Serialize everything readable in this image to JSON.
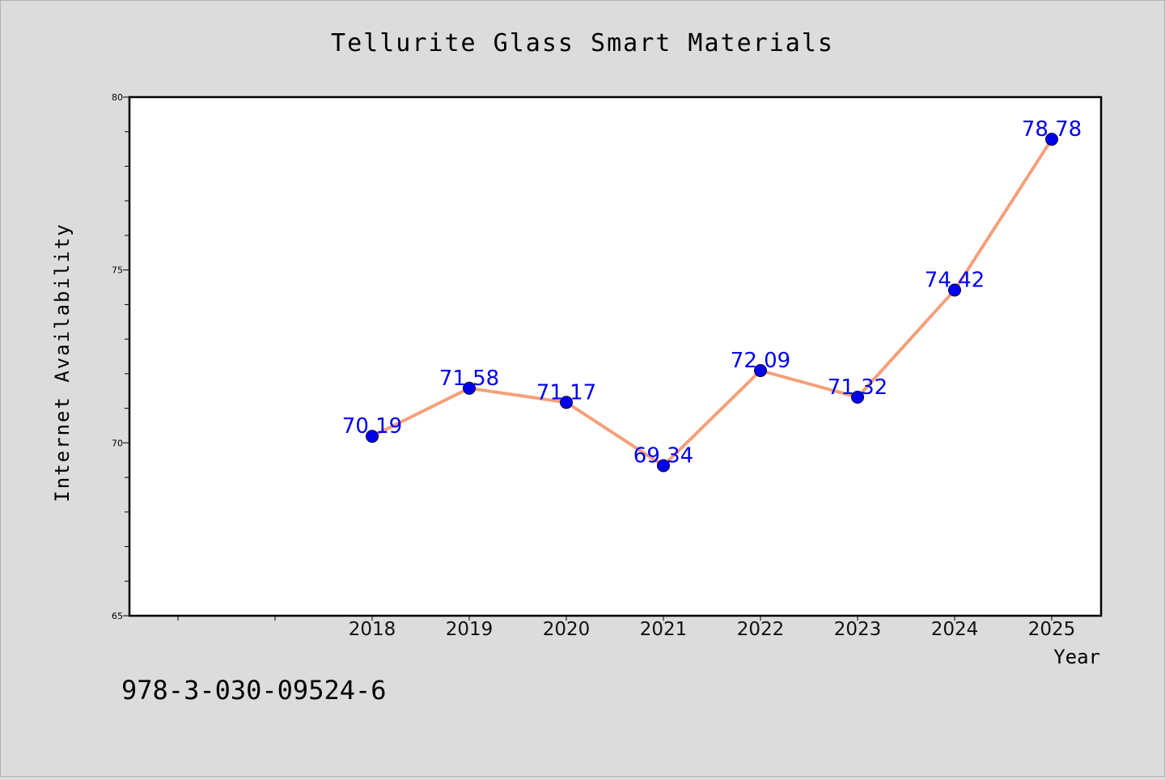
{
  "chart_data": {
    "type": "line",
    "title": "Tellurite Glass Smart Materials",
    "xlabel": "Year",
    "ylabel": "Internet Availability",
    "categories": [
      "2018",
      "2019",
      "2020",
      "2021",
      "2022",
      "2023",
      "2024",
      "2025"
    ],
    "series": [
      {
        "values": [
          70.19,
          71.58,
          71.17,
          69.34,
          72.09,
          71.32,
          74.42,
          78.78
        ]
      }
    ],
    "data_labels": [
      "70.19",
      "71.58",
      "71.17",
      "69.34",
      "72.09",
      "71.32",
      "74.42",
      "78.78"
    ],
    "ylim": [
      65,
      80
    ],
    "yticks": [
      "65",
      "70",
      "75",
      "80"
    ],
    "grid": false,
    "line_color": "#f4a07a",
    "marker_color": "#0000ee",
    "label_color": "#0000ee"
  },
  "footer_text": "978-3-030-09524-6"
}
